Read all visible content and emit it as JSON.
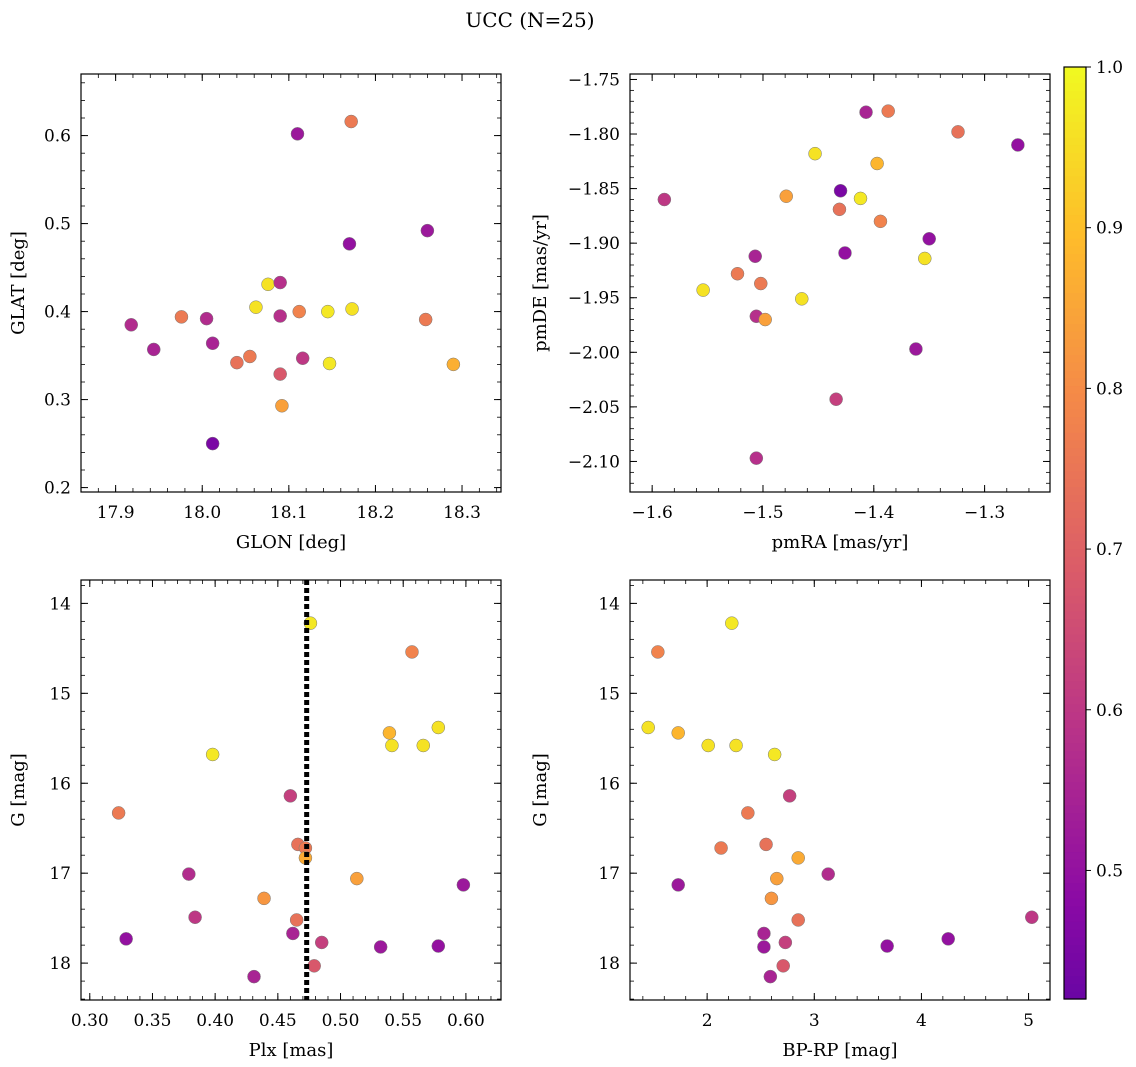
{
  "chart_data": {
    "title": "UCC (N=25)",
    "colorbar": {
      "colormap": "plasma",
      "range": [
        0.42,
        1.0
      ],
      "ticks": [
        "0.5",
        "0.6",
        "0.7",
        "0.8",
        "0.9",
        "1.0"
      ],
      "tick_values": [
        0.5,
        0.6,
        0.7,
        0.8,
        0.9,
        1.0
      ]
    },
    "panels": [
      {
        "type": "scatter",
        "xlabel": "GLON [deg]",
        "ylabel": "GLAT [deg]",
        "xlim": [
          17.86,
          18.345
        ],
        "ylim": [
          0.195,
          0.67
        ],
        "y_inverted": false,
        "xticks": [
          17.9,
          18.0,
          18.1,
          18.2,
          18.3
        ],
        "xticklabels": [
          "17.9",
          "18.0",
          "18.1",
          "18.2",
          "18.3"
        ],
        "yticks": [
          0.2,
          0.3,
          0.4,
          0.5,
          0.6
        ],
        "yticklabels": [
          "0.2",
          "0.3",
          "0.4",
          "0.5",
          "0.6"
        ],
        "points": [
          {
            "x": 18.11,
            "y": 0.602,
            "c": 0.52
          },
          {
            "x": 18.172,
            "y": 0.616,
            "c": 0.76
          },
          {
            "x": 18.26,
            "y": 0.492,
            "c": 0.52
          },
          {
            "x": 18.17,
            "y": 0.477,
            "c": 0.5
          },
          {
            "x": 17.918,
            "y": 0.385,
            "c": 0.57
          },
          {
            "x": 17.944,
            "y": 0.357,
            "c": 0.55
          },
          {
            "x": 17.976,
            "y": 0.394,
            "c": 0.76
          },
          {
            "x": 18.005,
            "y": 0.392,
            "c": 0.57
          },
          {
            "x": 18.012,
            "y": 0.364,
            "c": 0.55
          },
          {
            "x": 18.012,
            "y": 0.25,
            "c": 0.45
          },
          {
            "x": 18.04,
            "y": 0.342,
            "c": 0.74
          },
          {
            "x": 18.055,
            "y": 0.349,
            "c": 0.76
          },
          {
            "x": 18.062,
            "y": 0.405,
            "c": 0.96
          },
          {
            "x": 18.076,
            "y": 0.431,
            "c": 0.96
          },
          {
            "x": 18.09,
            "y": 0.433,
            "c": 0.58
          },
          {
            "x": 18.09,
            "y": 0.395,
            "c": 0.58
          },
          {
            "x": 18.09,
            "y": 0.329,
            "c": 0.68
          },
          {
            "x": 18.092,
            "y": 0.293,
            "c": 0.84
          },
          {
            "x": 18.112,
            "y": 0.4,
            "c": 0.78
          },
          {
            "x": 18.116,
            "y": 0.347,
            "c": 0.6
          },
          {
            "x": 18.145,
            "y": 0.4,
            "c": 0.97
          },
          {
            "x": 18.147,
            "y": 0.341,
            "c": 0.97
          },
          {
            "x": 18.173,
            "y": 0.403,
            "c": 0.96
          },
          {
            "x": 18.258,
            "y": 0.391,
            "c": 0.76
          },
          {
            "x": 18.29,
            "y": 0.34,
            "c": 0.87
          }
        ]
      },
      {
        "type": "scatter",
        "xlabel": "pmRA [mas/yr]",
        "ylabel": "pmDE [mas/yr]",
        "xlim": [
          -1.62,
          -1.241
        ],
        "ylim": [
          -2.128,
          -1.745
        ],
        "y_inverted": false,
        "xticks": [
          -1.6,
          -1.5,
          -1.4,
          -1.3
        ],
        "xticklabels": [
          "−1.6",
          "−1.5",
          "−1.4",
          "−1.3"
        ],
        "yticks": [
          -2.1,
          -2.05,
          -2.0,
          -1.95,
          -1.9,
          -1.85,
          -1.8,
          -1.75
        ],
        "yticklabels": [
          "−2.10",
          "−2.05",
          "−2.00",
          "−1.95",
          "−1.90",
          "−1.85",
          "−1.80",
          "−1.75"
        ],
        "points": [
          {
            "x": -1.589,
            "y": -1.86,
            "c": 0.6
          },
          {
            "x": -1.554,
            "y": -1.943,
            "c": 0.96
          },
          {
            "x": -1.523,
            "y": -1.928,
            "c": 0.76
          },
          {
            "x": -1.507,
            "y": -1.912,
            "c": 0.55
          },
          {
            "x": -1.502,
            "y": -1.937,
            "c": 0.76
          },
          {
            "x": -1.506,
            "y": -1.967,
            "c": 0.58
          },
          {
            "x": -1.498,
            "y": -1.97,
            "c": 0.84
          },
          {
            "x": -1.506,
            "y": -2.097,
            "c": 0.58
          },
          {
            "x": -1.479,
            "y": -1.857,
            "c": 0.84
          },
          {
            "x": -1.465,
            "y": -1.951,
            "c": 0.96
          },
          {
            "x": -1.453,
            "y": -1.818,
            "c": 0.96
          },
          {
            "x": -1.434,
            "y": -2.043,
            "c": 0.62
          },
          {
            "x": -1.43,
            "y": -1.852,
            "c": 0.45
          },
          {
            "x": -1.431,
            "y": -1.869,
            "c": 0.74
          },
          {
            "x": -1.426,
            "y": -1.909,
            "c": 0.5
          },
          {
            "x": -1.412,
            "y": -1.859,
            "c": 0.97
          },
          {
            "x": -1.407,
            "y": -1.78,
            "c": 0.55
          },
          {
            "x": -1.397,
            "y": -1.827,
            "c": 0.88
          },
          {
            "x": -1.394,
            "y": -1.88,
            "c": 0.78
          },
          {
            "x": -1.387,
            "y": -1.779,
            "c": 0.76
          },
          {
            "x": -1.362,
            "y": -1.997,
            "c": 0.52
          },
          {
            "x": -1.354,
            "y": -1.914,
            "c": 0.96
          },
          {
            "x": -1.35,
            "y": -1.896,
            "c": 0.5
          },
          {
            "x": -1.324,
            "y": -1.798,
            "c": 0.74
          },
          {
            "x": -1.27,
            "y": -1.81,
            "c": 0.5
          }
        ]
      },
      {
        "type": "scatter",
        "xlabel": "Plx [mas]",
        "ylabel": "G [mag]",
        "xlim": [
          0.293,
          0.628
        ],
        "ylim": [
          13.74,
          18.41
        ],
        "y_inverted": true,
        "xticks": [
          0.3,
          0.35,
          0.4,
          0.45,
          0.5,
          0.55,
          0.6
        ],
        "xticklabels": [
          "0.30",
          "0.35",
          "0.40",
          "0.45",
          "0.50",
          "0.55",
          "0.60"
        ],
        "yticks": [
          14,
          15,
          16,
          17,
          18
        ],
        "yticklabels": [
          "14",
          "15",
          "16",
          "17",
          "18"
        ],
        "vline": {
          "x": 0.473,
          "style": "dotted"
        },
        "points": [
          {
            "x": 0.323,
            "y": 16.33,
            "c": 0.76
          },
          {
            "x": 0.329,
            "y": 17.73,
            "c": 0.5
          },
          {
            "x": 0.379,
            "y": 17.01,
            "c": 0.57
          },
          {
            "x": 0.384,
            "y": 17.49,
            "c": 0.6
          },
          {
            "x": 0.398,
            "y": 15.68,
            "c": 0.97
          },
          {
            "x": 0.431,
            "y": 18.15,
            "c": 0.55
          },
          {
            "x": 0.439,
            "y": 17.28,
            "c": 0.82
          },
          {
            "x": 0.46,
            "y": 16.14,
            "c": 0.62
          },
          {
            "x": 0.462,
            "y": 17.67,
            "c": 0.55
          },
          {
            "x": 0.465,
            "y": 17.52,
            "c": 0.74
          },
          {
            "x": 0.466,
            "y": 16.68,
            "c": 0.74
          },
          {
            "x": 0.472,
            "y": 16.72,
            "c": 0.76
          },
          {
            "x": 0.472,
            "y": 16.83,
            "c": 0.86
          },
          {
            "x": 0.476,
            "y": 14.22,
            "c": 0.97
          },
          {
            "x": 0.479,
            "y": 18.03,
            "c": 0.68
          },
          {
            "x": 0.485,
            "y": 17.77,
            "c": 0.62
          },
          {
            "x": 0.513,
            "y": 17.06,
            "c": 0.84
          },
          {
            "x": 0.532,
            "y": 17.82,
            "c": 0.52
          },
          {
            "x": 0.539,
            "y": 15.44,
            "c": 0.88
          },
          {
            "x": 0.541,
            "y": 15.58,
            "c": 0.96
          },
          {
            "x": 0.557,
            "y": 14.54,
            "c": 0.78
          },
          {
            "x": 0.566,
            "y": 15.58,
            "c": 0.96
          },
          {
            "x": 0.578,
            "y": 15.38,
            "c": 0.96
          },
          {
            "x": 0.578,
            "y": 17.81,
            "c": 0.5
          },
          {
            "x": 0.598,
            "y": 17.13,
            "c": 0.52
          }
        ]
      },
      {
        "type": "scatter",
        "xlabel": "BP-RP [mag]",
        "ylabel": "G [mag]",
        "xlim": [
          1.28,
          5.2
        ],
        "ylim": [
          13.74,
          18.41
        ],
        "y_inverted": true,
        "xticks": [
          2,
          3,
          4,
          5
        ],
        "xticklabels": [
          "2",
          "3",
          "4",
          "5"
        ],
        "yticks": [
          14,
          15,
          16,
          17,
          18
        ],
        "yticklabels": [
          "14",
          "15",
          "16",
          "17",
          "18"
        ],
        "points": [
          {
            "x": 2.23,
            "y": 14.22,
            "c": 0.97
          },
          {
            "x": 1.54,
            "y": 14.54,
            "c": 0.78
          },
          {
            "x": 1.45,
            "y": 15.38,
            "c": 0.96
          },
          {
            "x": 1.73,
            "y": 15.44,
            "c": 0.88
          },
          {
            "x": 2.01,
            "y": 15.58,
            "c": 0.96
          },
          {
            "x": 2.27,
            "y": 15.58,
            "c": 0.96
          },
          {
            "x": 2.63,
            "y": 15.68,
            "c": 0.97
          },
          {
            "x": 2.77,
            "y": 16.14,
            "c": 0.62
          },
          {
            "x": 2.38,
            "y": 16.33,
            "c": 0.76
          },
          {
            "x": 2.55,
            "y": 16.68,
            "c": 0.74
          },
          {
            "x": 2.13,
            "y": 16.72,
            "c": 0.76
          },
          {
            "x": 2.85,
            "y": 16.83,
            "c": 0.86
          },
          {
            "x": 3.13,
            "y": 17.01,
            "c": 0.57
          },
          {
            "x": 2.65,
            "y": 17.06,
            "c": 0.84
          },
          {
            "x": 1.73,
            "y": 17.13,
            "c": 0.52
          },
          {
            "x": 2.6,
            "y": 17.28,
            "c": 0.82
          },
          {
            "x": 2.85,
            "y": 17.52,
            "c": 0.74
          },
          {
            "x": 2.53,
            "y": 17.67,
            "c": 0.55
          },
          {
            "x": 4.25,
            "y": 17.73,
            "c": 0.5
          },
          {
            "x": 2.73,
            "y": 17.77,
            "c": 0.62
          },
          {
            "x": 2.53,
            "y": 17.82,
            "c": 0.52
          },
          {
            "x": 3.68,
            "y": 17.81,
            "c": 0.5
          },
          {
            "x": 2.71,
            "y": 18.03,
            "c": 0.68
          },
          {
            "x": 2.59,
            "y": 18.15,
            "c": 0.55
          },
          {
            "x": 5.03,
            "y": 17.49,
            "c": 0.6
          }
        ]
      }
    ]
  }
}
